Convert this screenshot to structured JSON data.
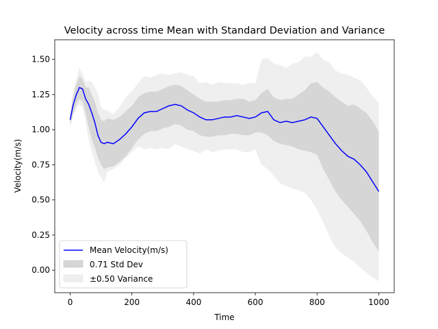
{
  "chart_data": {
    "type": "line",
    "title": "Velocity across time Mean with Standard Deviation and Variance",
    "xlabel": "Time",
    "ylabel": "Velocity(m/s)",
    "xlim": [
      -50,
      1050
    ],
    "ylim": [
      -0.16,
      1.64
    ],
    "xticks": [
      0,
      200,
      400,
      600,
      800,
      1000
    ],
    "yticks": [
      0.0,
      0.25,
      0.5,
      0.75,
      1.0,
      1.25,
      1.5
    ],
    "xtick_labels": [
      "0",
      "200",
      "400",
      "600",
      "800",
      "1000"
    ],
    "ytick_labels": [
      "0.00",
      "0.25",
      "0.50",
      "0.75",
      "1.00",
      "1.25",
      "1.50"
    ],
    "grid": false,
    "legend_position": "lower-left",
    "x": [
      0,
      10,
      20,
      30,
      40,
      50,
      60,
      70,
      80,
      90,
      100,
      110,
      120,
      140,
      160,
      180,
      200,
      220,
      240,
      260,
      280,
      300,
      320,
      340,
      360,
      380,
      400,
      420,
      440,
      460,
      480,
      500,
      520,
      540,
      560,
      580,
      600,
      620,
      640,
      660,
      680,
      700,
      720,
      740,
      760,
      780,
      800,
      820,
      840,
      860,
      880,
      900,
      920,
      940,
      960,
      980,
      1000
    ],
    "series": [
      {
        "name": "Mean Velocity(m/s)",
        "color": "#0000ff",
        "values": [
          1.07,
          1.18,
          1.25,
          1.3,
          1.29,
          1.22,
          1.18,
          1.12,
          1.05,
          0.96,
          0.91,
          0.9,
          0.91,
          0.9,
          0.93,
          0.97,
          1.02,
          1.08,
          1.12,
          1.13,
          1.13,
          1.15,
          1.17,
          1.18,
          1.17,
          1.14,
          1.12,
          1.09,
          1.07,
          1.07,
          1.08,
          1.09,
          1.09,
          1.1,
          1.09,
          1.08,
          1.09,
          1.12,
          1.13,
          1.07,
          1.05,
          1.06,
          1.05,
          1.06,
          1.07,
          1.09,
          1.08,
          1.02,
          0.96,
          0.9,
          0.85,
          0.81,
          0.79,
          0.75,
          0.7,
          0.63,
          0.56
        ]
      },
      {
        "name": "0.71 Std Dev",
        "color": "#d3d3d3",
        "lower": [
          1.03,
          1.12,
          1.18,
          1.22,
          1.2,
          1.12,
          1.02,
          0.93,
          0.87,
          0.8,
          0.75,
          0.72,
          0.73,
          0.74,
          0.77,
          0.81,
          0.87,
          0.93,
          0.97,
          0.99,
          0.99,
          1.01,
          1.02,
          1.04,
          1.03,
          1.0,
          0.99,
          0.96,
          0.95,
          0.95,
          0.96,
          0.96,
          0.97,
          0.97,
          0.96,
          0.96,
          0.98,
          0.98,
          0.96,
          0.92,
          0.9,
          0.89,
          0.88,
          0.86,
          0.85,
          0.84,
          0.82,
          0.72,
          0.64,
          0.56,
          0.5,
          0.45,
          0.4,
          0.35,
          0.28,
          0.2,
          0.13
        ],
        "upper": [
          1.11,
          1.24,
          1.32,
          1.38,
          1.36,
          1.3,
          1.3,
          1.25,
          1.2,
          1.12,
          1.07,
          1.06,
          1.08,
          1.07,
          1.09,
          1.13,
          1.17,
          1.23,
          1.26,
          1.27,
          1.27,
          1.29,
          1.31,
          1.32,
          1.31,
          1.28,
          1.25,
          1.22,
          1.2,
          1.2,
          1.2,
          1.21,
          1.21,
          1.22,
          1.22,
          1.2,
          1.21,
          1.26,
          1.29,
          1.23,
          1.21,
          1.22,
          1.22,
          1.25,
          1.28,
          1.33,
          1.34,
          1.3,
          1.27,
          1.23,
          1.2,
          1.17,
          1.18,
          1.15,
          1.12,
          1.06,
          0.99
        ]
      },
      {
        "name": "±0.50 Variance",
        "color": "#efefef",
        "lower": [
          1.02,
          1.1,
          1.15,
          1.18,
          1.16,
          1.06,
          0.93,
          0.84,
          0.77,
          0.7,
          0.66,
          0.62,
          0.7,
          0.72,
          0.75,
          0.8,
          0.84,
          0.88,
          0.86,
          0.87,
          0.86,
          0.87,
          0.86,
          0.9,
          0.88,
          0.86,
          0.85,
          0.83,
          0.86,
          0.84,
          0.85,
          0.86,
          0.86,
          0.86,
          0.84,
          0.84,
          0.86,
          0.75,
          0.72,
          0.67,
          0.62,
          0.6,
          0.58,
          0.57,
          0.55,
          0.5,
          0.43,
          0.34,
          0.24,
          0.16,
          0.12,
          0.09,
          0.06,
          0.02,
          -0.02,
          -0.05,
          -0.08
        ],
        "upper": [
          1.12,
          1.28,
          1.36,
          1.44,
          1.4,
          1.34,
          1.35,
          1.34,
          1.3,
          1.26,
          1.16,
          1.14,
          1.14,
          1.11,
          1.16,
          1.23,
          1.27,
          1.33,
          1.38,
          1.37,
          1.39,
          1.4,
          1.39,
          1.4,
          1.41,
          1.39,
          1.38,
          1.33,
          1.34,
          1.32,
          1.34,
          1.33,
          1.33,
          1.33,
          1.32,
          1.33,
          1.33,
          1.5,
          1.51,
          1.47,
          1.46,
          1.44,
          1.47,
          1.48,
          1.52,
          1.52,
          1.55,
          1.5,
          1.48,
          1.42,
          1.4,
          1.39,
          1.37,
          1.35,
          1.3,
          1.24,
          1.19
        ]
      }
    ]
  }
}
